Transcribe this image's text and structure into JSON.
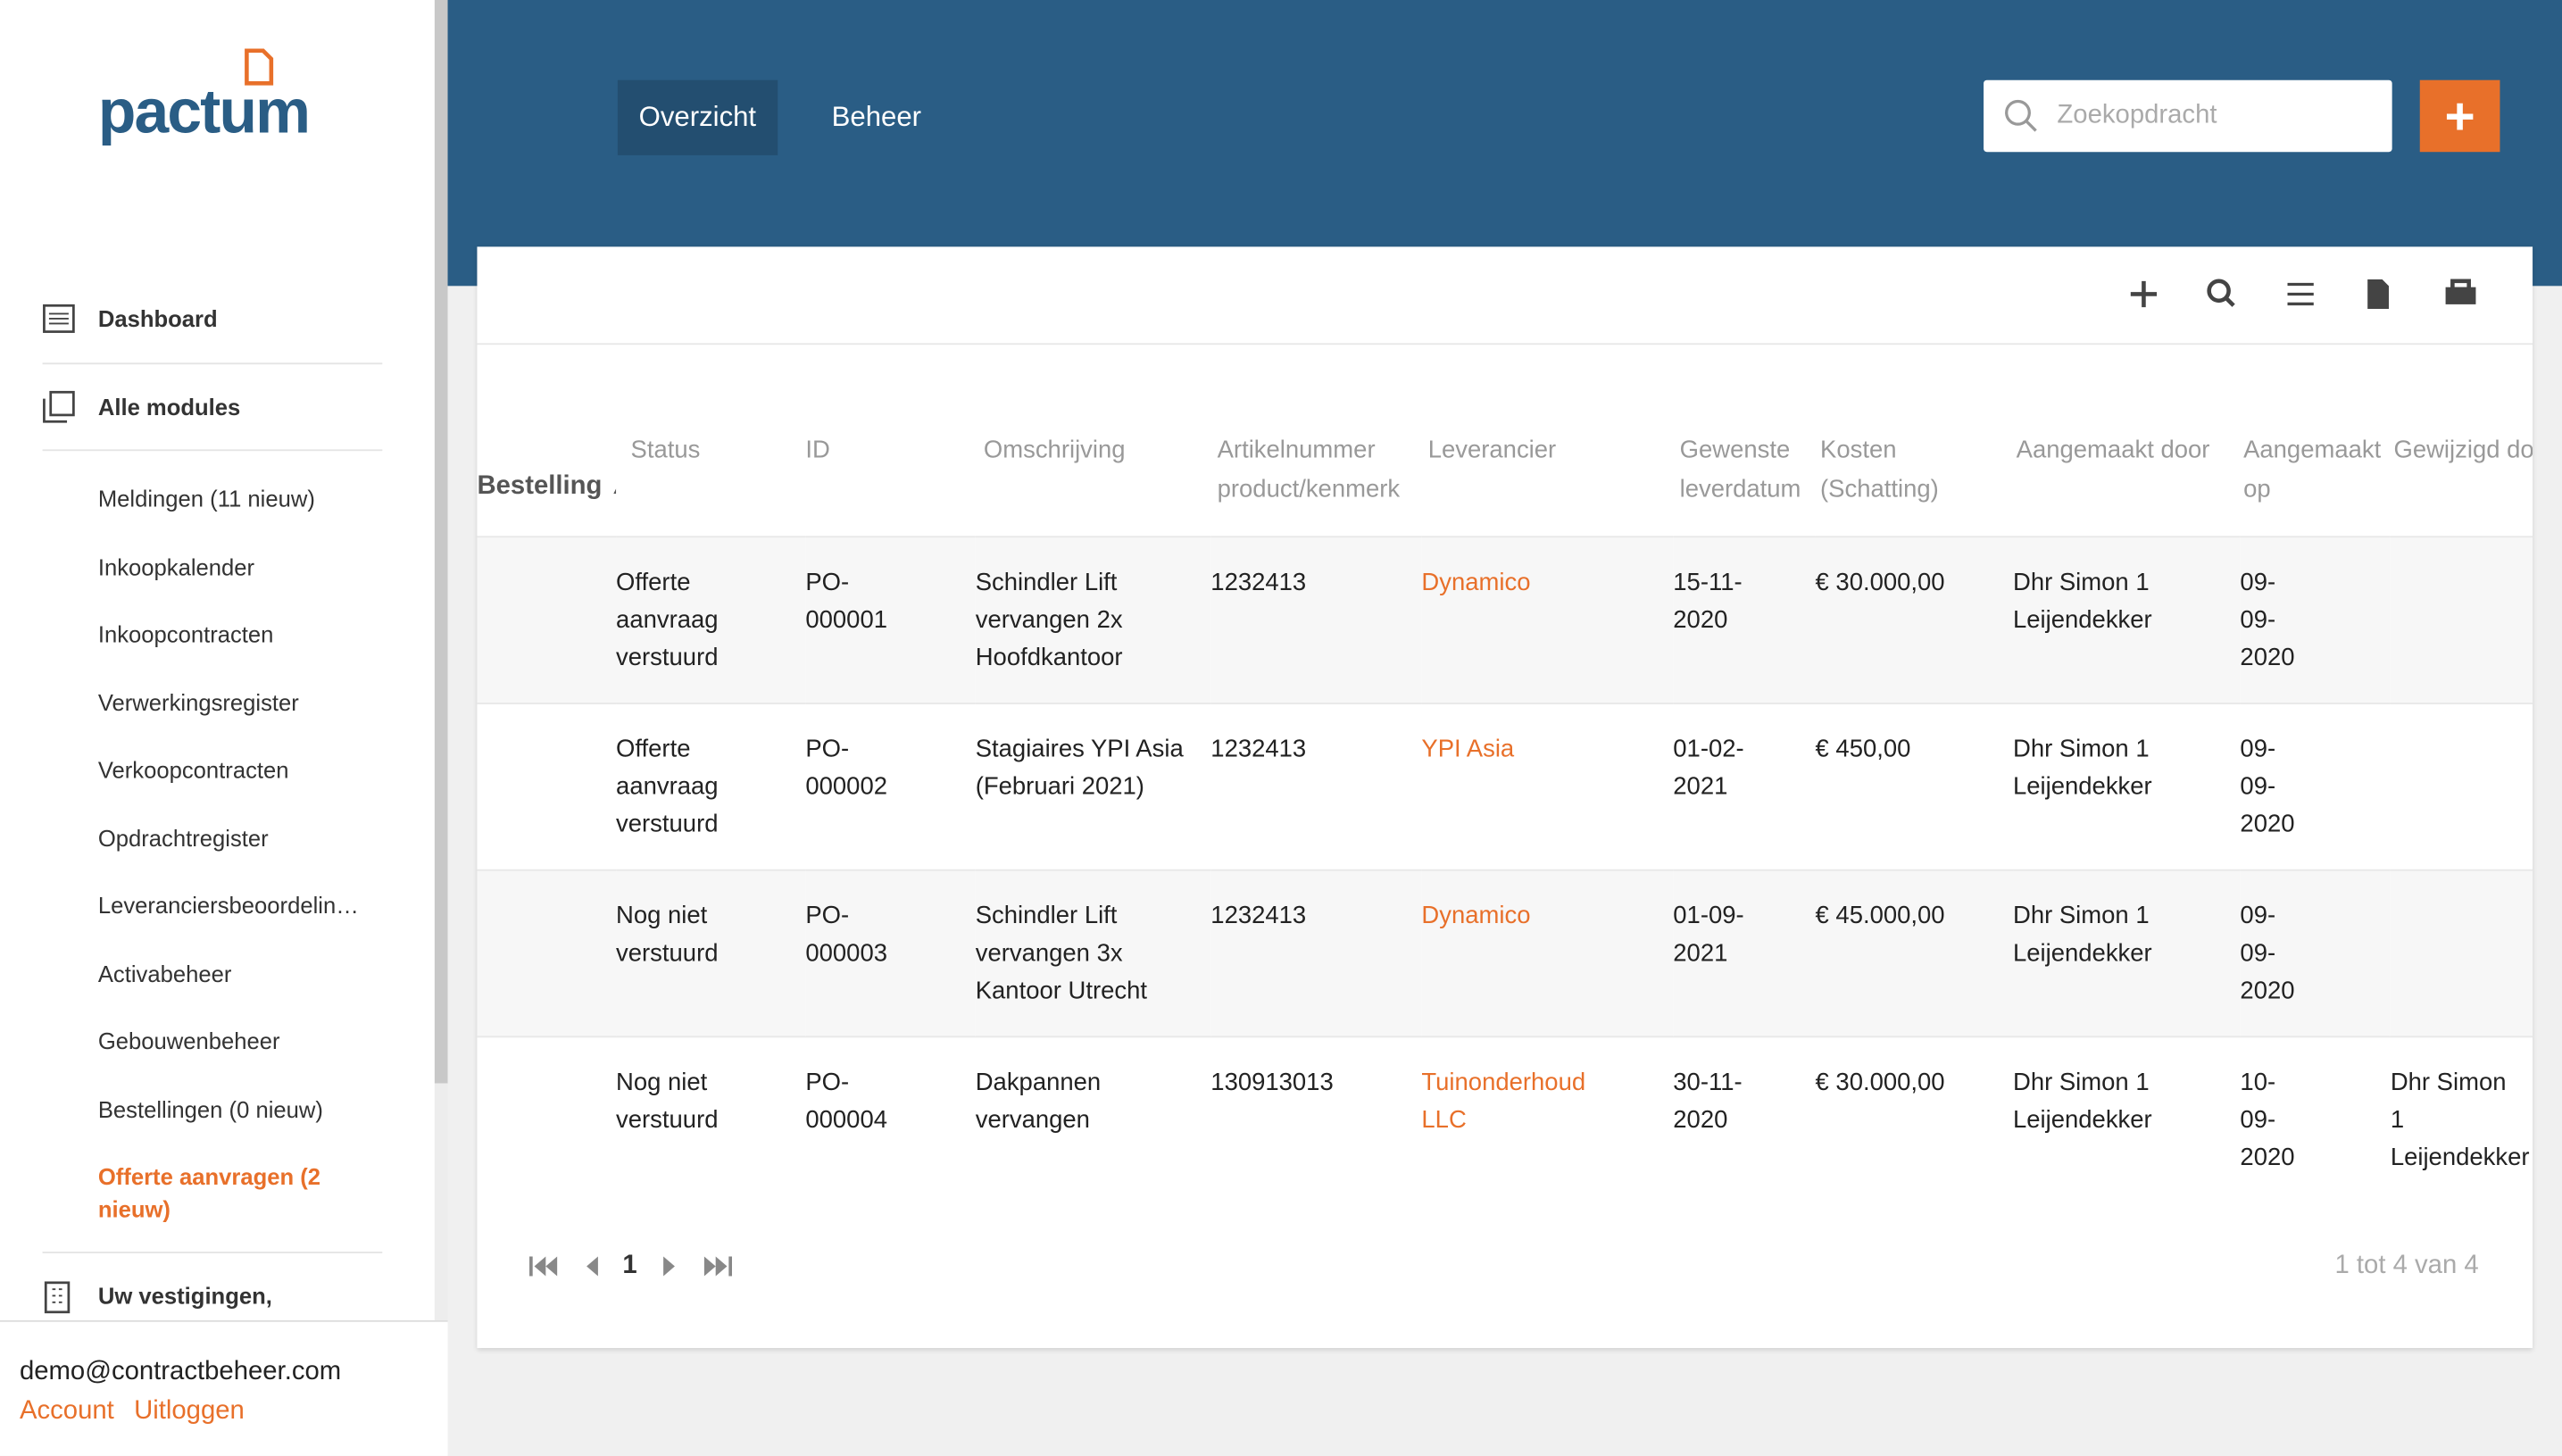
{
  "sidebar": {
    "logo": "pactum",
    "nav": [
      {
        "label": "Dashboard"
      },
      {
        "label": "Alle modules"
      }
    ],
    "modules": [
      "Meldingen (11 nieuw)",
      "Inkoopkalender",
      "Inkoopcontracten",
      "Verwerkingsregister",
      "Verkoopcontracten",
      "Opdrachtregister",
      "Leveranciersbeoordelin…",
      "Activabeheer",
      "Gebouwenbeheer",
      "Bestellingen (0 nieuw)",
      "Offerte aanvragen (2 nieuw)"
    ],
    "locations": "Uw vestigingen,",
    "user": {
      "email": "demo@contractbeheer.com",
      "account": "Account",
      "logout": "Uitloggen"
    }
  },
  "header": {
    "tabs": [
      "Overzicht",
      "Beheer"
    ],
    "search_placeholder": "Zoekopdracht",
    "add": "+"
  },
  "table": {
    "headers": [
      "Bestelling",
      "Status",
      "ID",
      "Omschrijving",
      "Artikelnummer product/kenmerk",
      "Leverancier",
      "Gewenste leverdatum",
      "Kosten (Schatting)",
      "Aangemaakt door",
      "Aangemaakt op",
      "Gewijzigd door"
    ],
    "rows": [
      [
        "",
        "Offerte aanvraag verstuurd",
        "PO-000001",
        "Schindler Lift vervangen 2x Hoofdkantoor",
        "1232413",
        "Dynamico",
        "15-11-2020",
        "€ 30.000,00",
        "Dhr Simon 1 Leijendekker",
        "09-09-2020",
        ""
      ],
      [
        "",
        "Offerte aanvraag verstuurd",
        "PO-000002",
        "Stagiaires YPI Asia (Februari 2021)",
        "1232413",
        "YPI Asia",
        "01-02-2021",
        "€ 450,00",
        "Dhr Simon 1 Leijendekker",
        "09-09-2020",
        ""
      ],
      [
        "",
        "Nog niet verstuurd",
        "PO-000003",
        "Schindler Lift vervangen 3x Kantoor Utrecht",
        "1232413",
        "Dynamico",
        "01-09-2021",
        "€ 45.000,00",
        "Dhr Simon 1 Leijendekker",
        "09-09-2020",
        ""
      ],
      [
        "",
        "Nog niet verstuurd",
        "PO-000004",
        "Dakpannen vervangen",
        "130913013",
        "Tuinonderhoud LLC",
        "30-11-2020",
        "€ 30.000,00",
        "Dhr Simon 1 Leijendekker",
        "10-09-2020",
        "Dhr Simon 1 Leijendekker"
      ]
    ]
  },
  "pagination": {
    "page": "1",
    "summary": "1 tot 4 van 4"
  }
}
